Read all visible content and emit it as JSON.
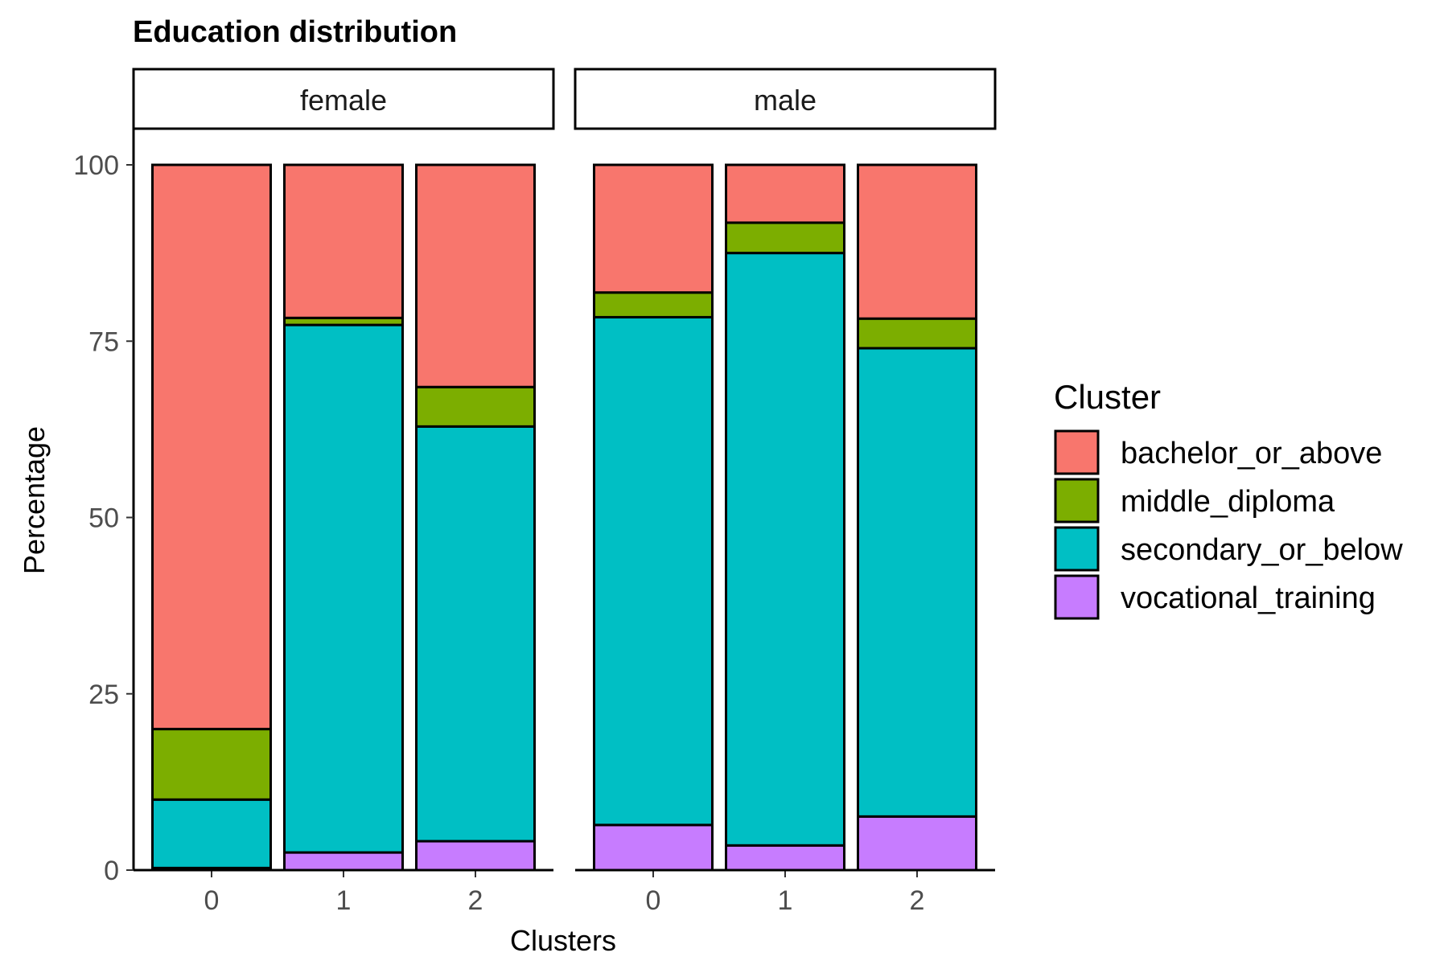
{
  "chart_data": {
    "type": "bar",
    "stacked": true,
    "title": "Education distribution",
    "xlabel": "Clusters",
    "ylabel": "Percentage",
    "ylim": [
      0,
      100
    ],
    "yticks": [
      "0",
      "25",
      "50",
      "75",
      "100"
    ],
    "legend": {
      "title": "Cluster",
      "placement": "right"
    },
    "categories": [
      "0",
      "1",
      "2"
    ],
    "facets": [
      {
        "name": "female",
        "series": [
          {
            "name": "vocational_training",
            "color": "#C77CFF",
            "values": [
              0.3,
              2.5,
              4.1
            ]
          },
          {
            "name": "secondary_or_below",
            "color": "#00BFC4",
            "values": [
              9.7,
              74.8,
              58.8
            ]
          },
          {
            "name": "middle_diploma",
            "color": "#7CAE00",
            "values": [
              10.0,
              1.0,
              5.6
            ]
          },
          {
            "name": "bachelor_or_above",
            "color": "#F8766D",
            "values": [
              80.0,
              21.7,
              31.5
            ]
          }
        ]
      },
      {
        "name": "male",
        "series": [
          {
            "name": "vocational_training",
            "color": "#C77CFF",
            "values": [
              6.4,
              3.5,
              7.6
            ]
          },
          {
            "name": "secondary_or_below",
            "color": "#00BFC4",
            "values": [
              72.0,
              84.0,
              66.4
            ]
          },
          {
            "name": "middle_diploma",
            "color": "#7CAE00",
            "values": [
              3.5,
              4.3,
              4.2
            ]
          },
          {
            "name": "bachelor_or_above",
            "color": "#F8766D",
            "values": [
              18.1,
              8.2,
              21.8
            ]
          }
        ]
      }
    ],
    "legend_order": [
      "bachelor_or_above",
      "middle_diploma",
      "secondary_or_below",
      "vocational_training"
    ]
  }
}
